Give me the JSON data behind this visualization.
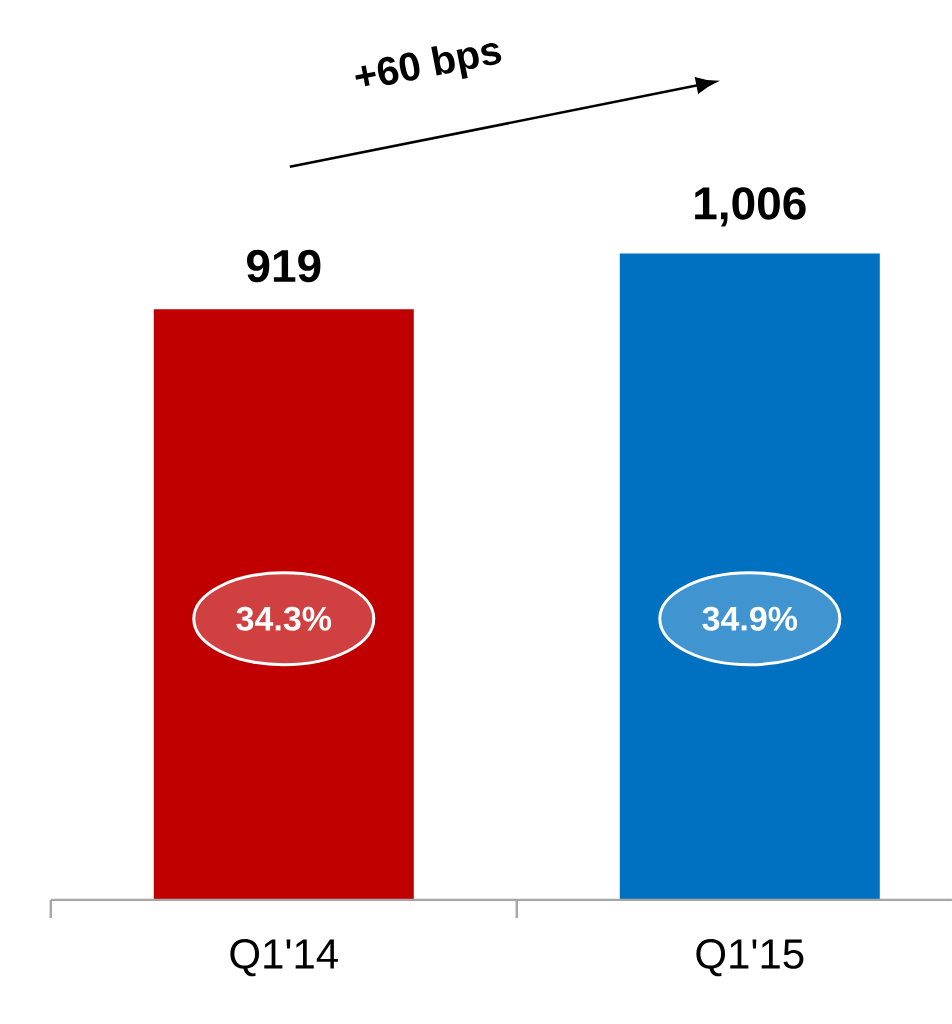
{
  "chart_data": {
    "type": "bar",
    "categories": [
      "Q1'14",
      "Q1'15"
    ],
    "values": [
      919,
      1006
    ],
    "colors": [
      "#c00000",
      "#0070c0"
    ],
    "value_labels": [
      "919",
      "1,006"
    ],
    "tick_labels": "x",
    "annotations": [
      "+60 bps",
      "34.3%",
      "34.9%"
    ]
  }
}
